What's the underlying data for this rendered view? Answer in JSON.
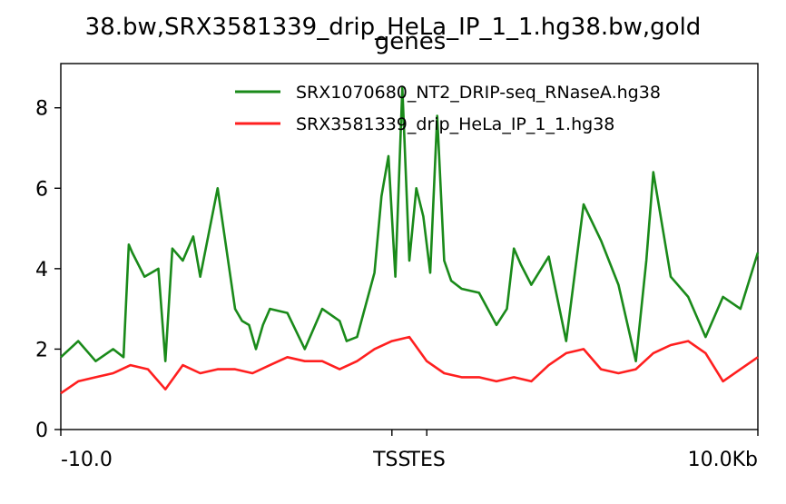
{
  "chart_data": {
    "type": "line",
    "title_line1": "38.bw,SRX3581339_drip_HeLa_IP_1_1.hg38.bw,gold",
    "title_line2": "genes",
    "xlabel": "",
    "ylabel": "",
    "x_range": [
      -10,
      10
    ],
    "ylim": [
      0,
      9.1
    ],
    "y_ticks": [
      0,
      2,
      4,
      6,
      8
    ],
    "x_ticks": [
      {
        "x": -10,
        "label": "-10.0"
      },
      {
        "x": -0.5,
        "label": "TSS"
      },
      {
        "x": 0.5,
        "label": "TES"
      },
      {
        "x": 10,
        "label": "10.0Kb"
      }
    ],
    "grid": false,
    "legend_position": "top-right",
    "series": [
      {
        "name": "SRX1070680_NT2_DRIP-seq_RNaseA.hg38",
        "color": "#1a8a1a",
        "x": [
          -10.0,
          -9.5,
          -9.0,
          -8.5,
          -8.2,
          -8.05,
          -7.95,
          -7.6,
          -7.2,
          -7.0,
          -6.8,
          -6.5,
          -6.2,
          -6.0,
          -5.5,
          -5.0,
          -4.8,
          -4.6,
          -4.4,
          -4.2,
          -4.0,
          -3.5,
          -3.0,
          -2.5,
          -2.0,
          -1.8,
          -1.5,
          -1.0,
          -0.8,
          -0.6,
          -0.4,
          -0.2,
          0.0,
          0.2,
          0.4,
          0.6,
          0.8,
          1.0,
          1.2,
          1.5,
          2.0,
          2.5,
          2.8,
          3.0,
          3.2,
          3.5,
          4.0,
          4.5,
          5.0,
          5.5,
          6.0,
          6.5,
          6.8,
          7.0,
          7.5,
          8.0,
          8.5,
          9.0,
          9.5,
          10.0
        ],
        "values": [
          1.8,
          2.2,
          1.7,
          2.0,
          1.8,
          4.6,
          4.4,
          3.8,
          4.0,
          1.7,
          4.5,
          4.2,
          4.8,
          3.8,
          6.0,
          3.0,
          2.7,
          2.6,
          2.0,
          2.6,
          3.0,
          2.9,
          2.0,
          3.0,
          2.7,
          2.2,
          2.3,
          3.9,
          5.8,
          6.8,
          3.8,
          8.5,
          4.2,
          6.0,
          5.3,
          3.9,
          7.8,
          4.2,
          3.7,
          3.5,
          3.4,
          2.6,
          3.0,
          4.5,
          4.1,
          3.6,
          4.3,
          2.2,
          5.6,
          4.7,
          3.6,
          1.7,
          4.2,
          6.4,
          3.8,
          3.3,
          2.3,
          3.3,
          3.0,
          4.4
        ]
      },
      {
        "name": "SRX3581339_drip_HeLa_IP_1_1.hg38",
        "color": "#ff1f1f",
        "x": [
          -10.0,
          -9.5,
          -9.0,
          -8.5,
          -8.0,
          -7.5,
          -7.0,
          -6.5,
          -6.0,
          -5.5,
          -5.0,
          -4.5,
          -4.0,
          -3.5,
          -3.0,
          -2.5,
          -2.0,
          -1.5,
          -1.0,
          -0.5,
          0.0,
          0.5,
          1.0,
          1.5,
          2.0,
          2.5,
          3.0,
          3.5,
          4.0,
          4.5,
          5.0,
          5.5,
          6.0,
          6.5,
          7.0,
          7.5,
          8.0,
          8.5,
          9.0,
          9.5,
          10.0
        ],
        "values": [
          0.9,
          1.2,
          1.3,
          1.4,
          1.6,
          1.5,
          1.0,
          1.6,
          1.4,
          1.5,
          1.5,
          1.4,
          1.6,
          1.8,
          1.7,
          1.7,
          1.5,
          1.7,
          2.0,
          2.2,
          2.3,
          1.7,
          1.4,
          1.3,
          1.3,
          1.2,
          1.3,
          1.2,
          1.6,
          1.9,
          2.0,
          1.5,
          1.4,
          1.5,
          1.9,
          2.1,
          2.2,
          1.9,
          1.2,
          1.5,
          1.8
        ]
      }
    ]
  }
}
